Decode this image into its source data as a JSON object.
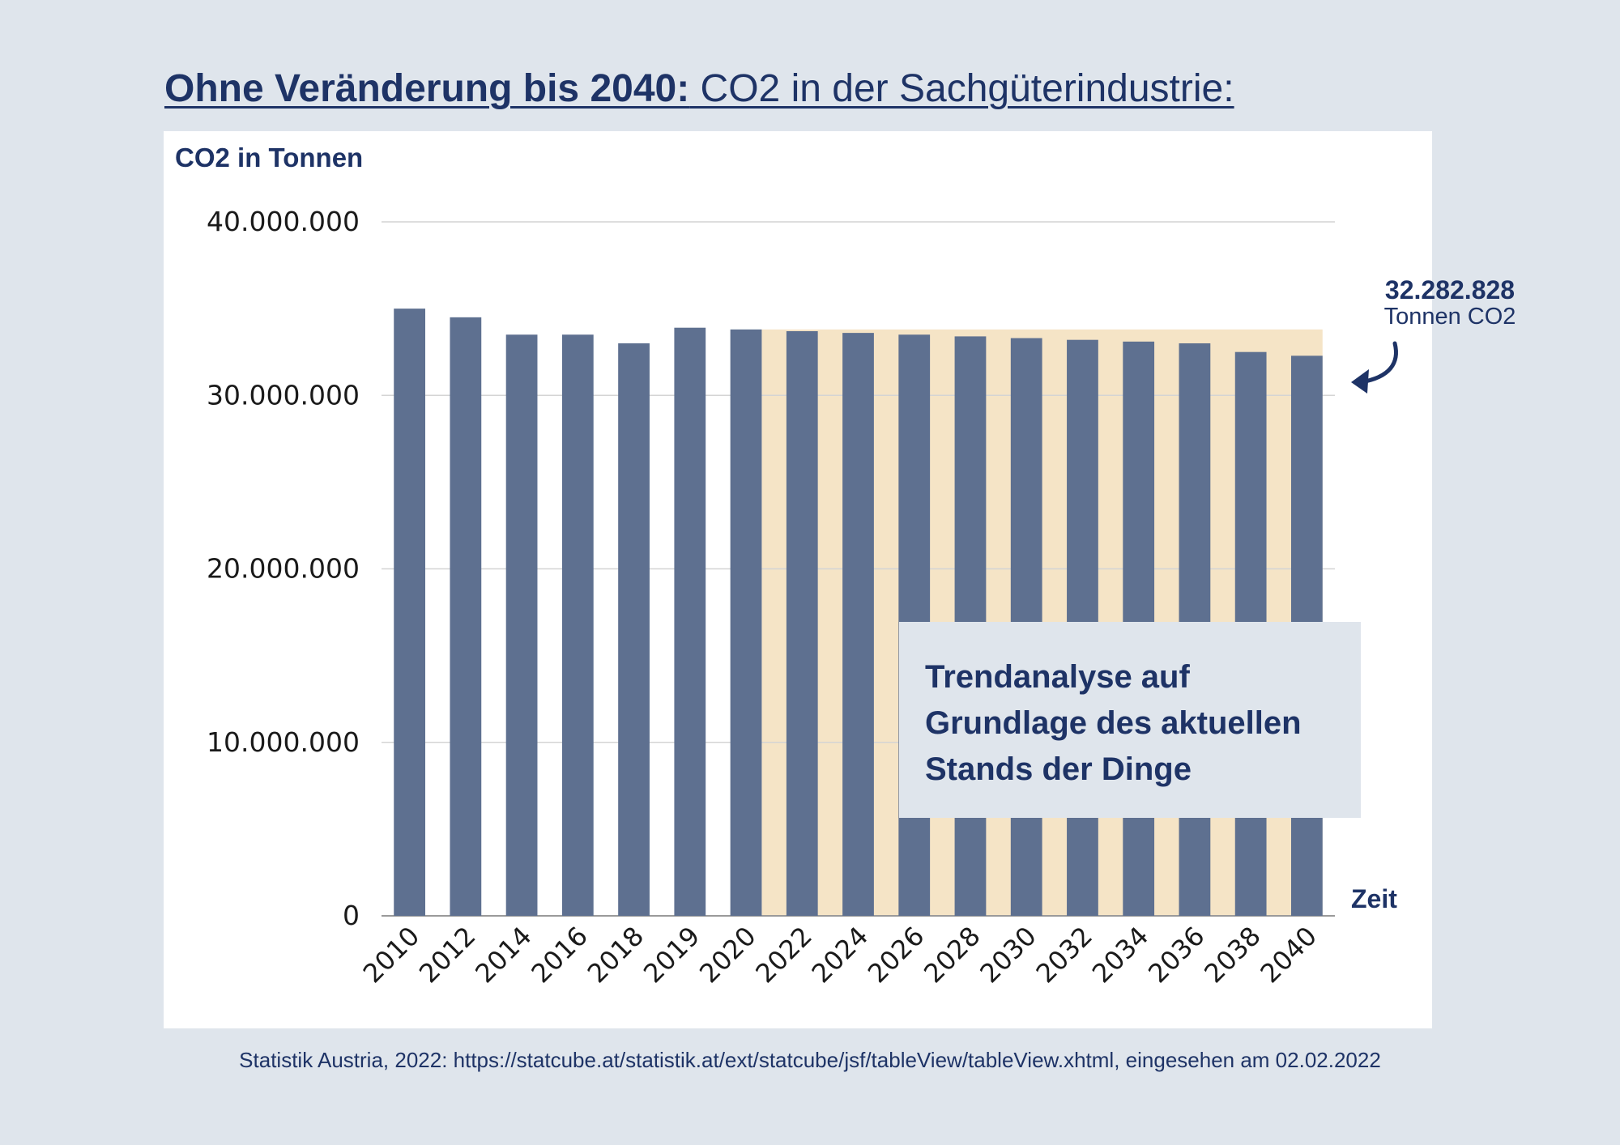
{
  "title": {
    "bold": "Ohne Veränderung bis 2040:",
    "rest": " CO2 in der Sachgüterindustrie:"
  },
  "annotation": {
    "box_text": "Trendanalyse auf Grundlage des aktuellen Stands der Dinge",
    "end_value": "32.282.828",
    "end_unit": "Tonnen CO2"
  },
  "source": "Statistik Austria, 2022: https://statcube.at/statistik.at/ext/statcube/jsf/tableView/tableView.xhtml, eingesehen am 02.02.2022",
  "colors": {
    "bar": "#5e7090",
    "forecast_band": "#f5e4c6",
    "text": "#1e3366",
    "background": "#dfe5ec"
  },
  "chart_data": {
    "type": "bar",
    "ylabel": "CO2 in Tonnen",
    "xlabel": "Zeit",
    "ylim": [
      0,
      40000000
    ],
    "yticks": [
      0,
      10000000,
      20000000,
      30000000,
      40000000
    ],
    "ytick_labels": [
      "0",
      "10.000.000",
      "20.000.000",
      "30.000.000",
      "40.000.000"
    ],
    "grid": true,
    "categories": [
      "2010",
      "2012",
      "2014",
      "2016",
      "2018",
      "2019",
      "2020",
      "2022",
      "2024",
      "2026",
      "2028",
      "2030",
      "2032",
      "2034",
      "2036",
      "2038",
      "2040"
    ],
    "values": [
      35000000,
      34500000,
      33500000,
      33500000,
      33000000,
      33900000,
      33800000,
      33700000,
      33600000,
      33500000,
      33400000,
      33300000,
      33200000,
      33100000,
      33000000,
      32500000,
      32282828
    ],
    "forecast_band": {
      "from_category": "2020",
      "to_category": "2040",
      "level": 33800000
    }
  }
}
